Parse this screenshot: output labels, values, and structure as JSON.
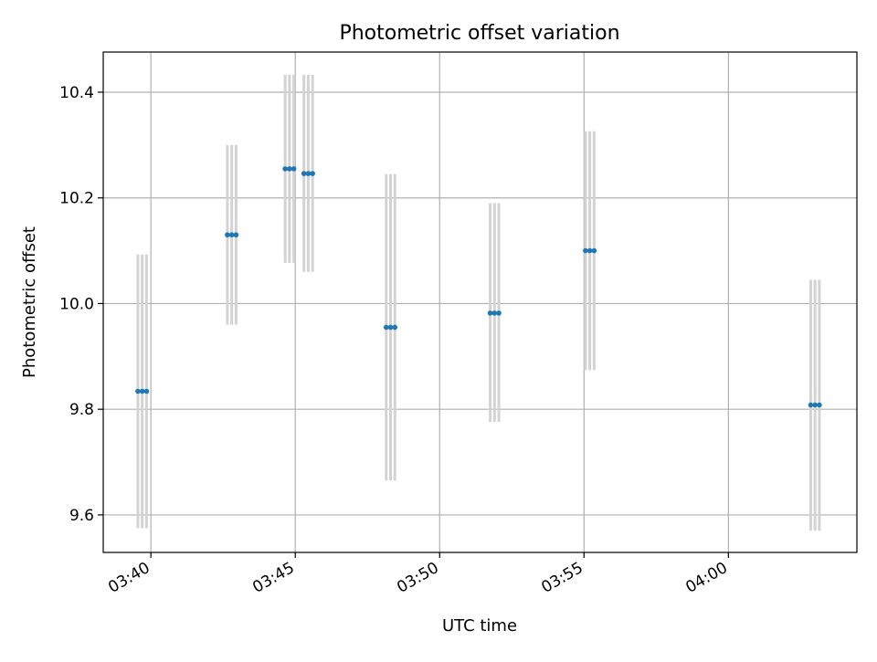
{
  "chart_data": {
    "type": "scatter",
    "title": "Photometric offset variation",
    "xlabel": "UTC time",
    "ylabel": "Photometric offset",
    "x_tick_labels": [
      "03:40",
      "03:45",
      "03:50",
      "03:55",
      "04:00"
    ],
    "x_ticks_minutes": [
      40,
      45,
      50,
      55,
      60
    ],
    "xlim_minutes": [
      38.35,
      64.45
    ],
    "y_ticks": [
      9.6,
      9.8,
      10.0,
      10.2,
      10.4
    ],
    "ylim": [
      9.529,
      10.476
    ],
    "grid": true,
    "legend": "none",
    "colors": {
      "marker": "#1f77b4",
      "errorbar": "#d3d3d3",
      "grid": "#b0b0b0"
    },
    "points": [
      {
        "t": 39.55,
        "y": 9.834,
        "ylo": 9.575,
        "yhi": 10.093
      },
      {
        "t": 39.7,
        "y": 9.834,
        "ylo": 9.575,
        "yhi": 10.093
      },
      {
        "t": 39.85,
        "y": 9.834,
        "ylo": 9.575,
        "yhi": 10.093
      },
      {
        "t": 42.65,
        "y": 10.13,
        "ylo": 9.96,
        "yhi": 10.3
      },
      {
        "t": 42.8,
        "y": 10.13,
        "ylo": 9.96,
        "yhi": 10.3
      },
      {
        "t": 42.95,
        "y": 10.13,
        "ylo": 9.96,
        "yhi": 10.3
      },
      {
        "t": 44.65,
        "y": 10.255,
        "ylo": 10.077,
        "yhi": 10.433
      },
      {
        "t": 44.8,
        "y": 10.255,
        "ylo": 10.077,
        "yhi": 10.433
      },
      {
        "t": 44.95,
        "y": 10.255,
        "ylo": 10.077,
        "yhi": 10.433
      },
      {
        "t": 45.3,
        "y": 10.246,
        "ylo": 10.06,
        "yhi": 10.433
      },
      {
        "t": 45.45,
        "y": 10.246,
        "ylo": 10.06,
        "yhi": 10.433
      },
      {
        "t": 45.6,
        "y": 10.246,
        "ylo": 10.06,
        "yhi": 10.433
      },
      {
        "t": 48.15,
        "y": 9.955,
        "ylo": 9.665,
        "yhi": 10.245
      },
      {
        "t": 48.3,
        "y": 9.955,
        "ylo": 9.665,
        "yhi": 10.245
      },
      {
        "t": 48.45,
        "y": 9.955,
        "ylo": 9.665,
        "yhi": 10.245
      },
      {
        "t": 51.75,
        "y": 9.982,
        "ylo": 9.776,
        "yhi": 10.19
      },
      {
        "t": 51.9,
        "y": 9.982,
        "ylo": 9.776,
        "yhi": 10.19
      },
      {
        "t": 52.05,
        "y": 9.982,
        "ylo": 9.776,
        "yhi": 10.19
      },
      {
        "t": 55.05,
        "y": 10.1,
        "ylo": 9.874,
        "yhi": 10.326
      },
      {
        "t": 55.2,
        "y": 10.1,
        "ylo": 9.874,
        "yhi": 10.326
      },
      {
        "t": 55.35,
        "y": 10.1,
        "ylo": 9.874,
        "yhi": 10.326
      },
      {
        "t": 62.85,
        "y": 9.808,
        "ylo": 9.57,
        "yhi": 10.045
      },
      {
        "t": 63.0,
        "y": 9.808,
        "ylo": 9.57,
        "yhi": 10.045
      },
      {
        "t": 63.15,
        "y": 9.808,
        "ylo": 9.57,
        "yhi": 10.045
      }
    ]
  }
}
